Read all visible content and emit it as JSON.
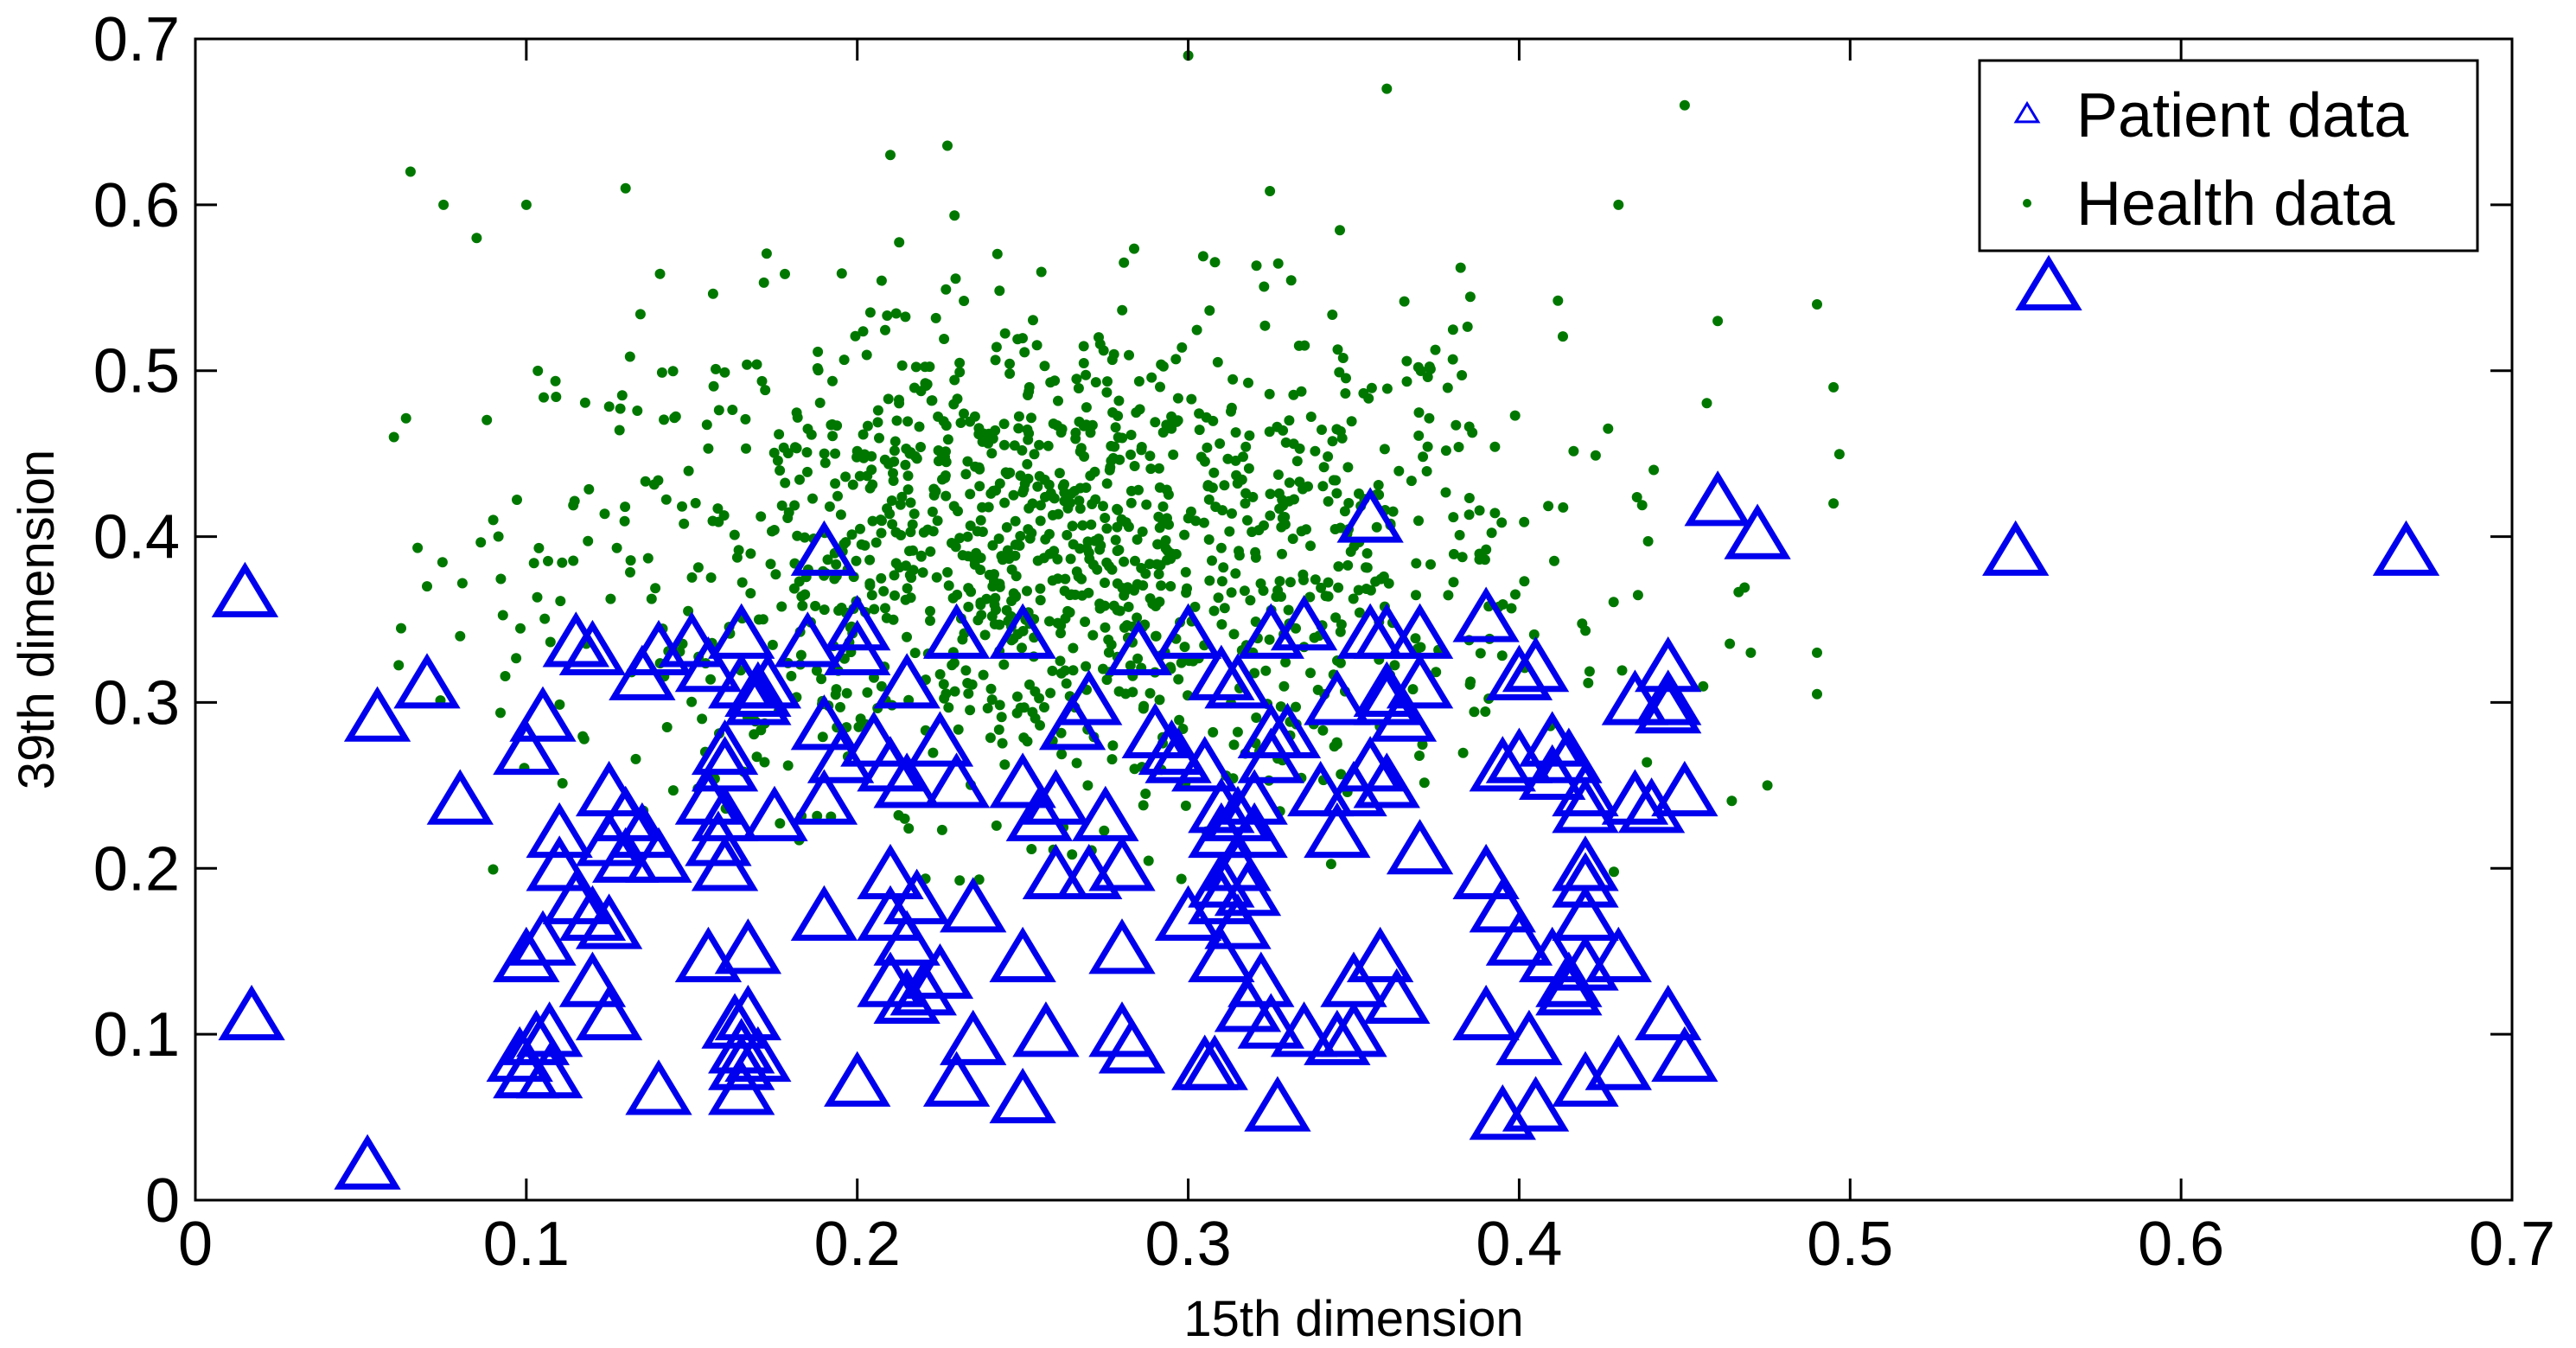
{
  "chart_data": {
    "type": "scatter",
    "xlabel": "15th dimension",
    "ylabel": "39th dimension",
    "xlim": [
      0,
      0.7
    ],
    "ylim": [
      0,
      0.7
    ],
    "x_ticks": [
      "0",
      "0.1",
      "0.2",
      "0.3",
      "0.4",
      "0.5",
      "0.6",
      "0.7"
    ],
    "y_ticks": [
      "0",
      "0.1",
      "0.2",
      "0.3",
      "0.4",
      "0.5",
      "0.6",
      "0.7"
    ],
    "grid": false,
    "legend_position": "top-right",
    "series": [
      {
        "name": "Patient data",
        "marker": "triangle",
        "color": "#0000ee",
        "points": [
          [
            0.015,
            0.365
          ],
          [
            0.055,
            0.29
          ],
          [
            0.07,
            0.31
          ],
          [
            0.08,
            0.24
          ],
          [
            0.017,
            0.11
          ],
          [
            0.052,
            0.02
          ],
          [
            0.1,
            0.27
          ],
          [
            0.105,
            0.29
          ],
          [
            0.11,
            0.22
          ],
          [
            0.11,
            0.2
          ],
          [
            0.115,
            0.18
          ],
          [
            0.12,
            0.17
          ],
          [
            0.125,
            0.165
          ],
          [
            0.12,
            0.13
          ],
          [
            0.125,
            0.11
          ],
          [
            0.1,
            0.145
          ],
          [
            0.105,
            0.155
          ],
          [
            0.098,
            0.085
          ],
          [
            0.103,
            0.095
          ],
          [
            0.107,
            0.1
          ],
          [
            0.1,
            0.075
          ],
          [
            0.107,
            0.075
          ],
          [
            0.115,
            0.335
          ],
          [
            0.12,
            0.33
          ],
          [
            0.125,
            0.245
          ],
          [
            0.13,
            0.23
          ],
          [
            0.125,
            0.215
          ],
          [
            0.13,
            0.205
          ],
          [
            0.135,
            0.22
          ],
          [
            0.14,
            0.205
          ],
          [
            0.135,
            0.315
          ],
          [
            0.14,
            0.33
          ],
          [
            0.15,
            0.335
          ],
          [
            0.155,
            0.32
          ],
          [
            0.14,
            0.065
          ],
          [
            0.16,
            0.27
          ],
          [
            0.16,
            0.26
          ],
          [
            0.155,
            0.24
          ],
          [
            0.16,
            0.23
          ],
          [
            0.158,
            0.215
          ],
          [
            0.16,
            0.2
          ],
          [
            0.155,
            0.145
          ],
          [
            0.165,
            0.34
          ],
          [
            0.165,
            0.31
          ],
          [
            0.17,
            0.305
          ],
          [
            0.173,
            0.31
          ],
          [
            0.175,
            0.23
          ],
          [
            0.17,
            0.3
          ],
          [
            0.163,
            0.105
          ],
          [
            0.167,
            0.11
          ],
          [
            0.165,
            0.09
          ],
          [
            0.17,
            0.085
          ],
          [
            0.165,
            0.08
          ],
          [
            0.165,
            0.065
          ],
          [
            0.167,
            0.15
          ],
          [
            0.19,
            0.39
          ],
          [
            0.185,
            0.335
          ],
          [
            0.19,
            0.285
          ],
          [
            0.195,
            0.265
          ],
          [
            0.19,
            0.24
          ],
          [
            0.2,
            0.33
          ],
          [
            0.2,
            0.345
          ],
          [
            0.205,
            0.275
          ],
          [
            0.19,
            0.17
          ],
          [
            0.2,
            0.07
          ],
          [
            0.215,
            0.31
          ],
          [
            0.21,
            0.26
          ],
          [
            0.215,
            0.25
          ],
          [
            0.21,
            0.195
          ],
          [
            0.21,
            0.17
          ],
          [
            0.215,
            0.155
          ],
          [
            0.218,
            0.18
          ],
          [
            0.21,
            0.13
          ],
          [
            0.215,
            0.12
          ],
          [
            0.22,
            0.125
          ],
          [
            0.225,
            0.135
          ],
          [
            0.23,
            0.34
          ],
          [
            0.225,
            0.275
          ],
          [
            0.23,
            0.25
          ],
          [
            0.235,
            0.175
          ],
          [
            0.23,
            0.07
          ],
          [
            0.235,
            0.095
          ],
          [
            0.25,
            0.34
          ],
          [
            0.25,
            0.25
          ],
          [
            0.255,
            0.23
          ],
          [
            0.25,
            0.145
          ],
          [
            0.257,
            0.1
          ],
          [
            0.25,
            0.06
          ],
          [
            0.26,
            0.24
          ],
          [
            0.26,
            0.195
          ],
          [
            0.265,
            0.285
          ],
          [
            0.27,
            0.3
          ],
          [
            0.275,
            0.23
          ],
          [
            0.27,
            0.195
          ],
          [
            0.28,
            0.2
          ],
          [
            0.28,
            0.15
          ],
          [
            0.28,
            0.1
          ],
          [
            0.283,
            0.09
          ],
          [
            0.285,
            0.33
          ],
          [
            0.29,
            0.28
          ],
          [
            0.295,
            0.27
          ],
          [
            0.297,
            0.265
          ],
          [
            0.3,
            0.34
          ],
          [
            0.3,
            0.17
          ],
          [
            0.305,
            0.26
          ],
          [
            0.305,
            0.08
          ],
          [
            0.31,
            0.315
          ],
          [
            0.31,
            0.235
          ],
          [
            0.31,
            0.22
          ],
          [
            0.31,
            0.19
          ],
          [
            0.31,
            0.18
          ],
          [
            0.31,
            0.145
          ],
          [
            0.308,
            0.08
          ],
          [
            0.315,
            0.31
          ],
          [
            0.315,
            0.23
          ],
          [
            0.315,
            0.2
          ],
          [
            0.318,
            0.185
          ],
          [
            0.315,
            0.165
          ],
          [
            0.318,
            0.115
          ],
          [
            0.32,
            0.24
          ],
          [
            0.32,
            0.22
          ],
          [
            0.322,
            0.13
          ],
          [
            0.325,
            0.34
          ],
          [
            0.325,
            0.28
          ],
          [
            0.325,
            0.265
          ],
          [
            0.325,
            0.105
          ],
          [
            0.327,
            0.055
          ],
          [
            0.33,
            0.28
          ],
          [
            0.335,
            0.345
          ],
          [
            0.335,
            0.1
          ],
          [
            0.34,
            0.245
          ],
          [
            0.345,
            0.22
          ],
          [
            0.345,
            0.3
          ],
          [
            0.345,
            0.095
          ],
          [
            0.35,
            0.245
          ],
          [
            0.35,
            0.1
          ],
          [
            0.35,
            0.13
          ],
          [
            0.355,
            0.41
          ],
          [
            0.355,
            0.26
          ],
          [
            0.355,
            0.34
          ],
          [
            0.36,
            0.34
          ],
          [
            0.36,
            0.305
          ],
          [
            0.36,
            0.3
          ],
          [
            0.36,
            0.25
          ],
          [
            0.358,
            0.145
          ],
          [
            0.363,
            0.12
          ],
          [
            0.365,
            0.29
          ],
          [
            0.37,
            0.31
          ],
          [
            0.37,
            0.34
          ],
          [
            0.37,
            0.21
          ],
          [
            0.39,
            0.35
          ],
          [
            0.39,
            0.195
          ],
          [
            0.395,
            0.175
          ],
          [
            0.4,
            0.155
          ],
          [
            0.39,
            0.11
          ],
          [
            0.395,
            0.26
          ],
          [
            0.4,
            0.265
          ],
          [
            0.4,
            0.315
          ],
          [
            0.405,
            0.32
          ],
          [
            0.395,
            0.05
          ],
          [
            0.405,
            0.055
          ],
          [
            0.403,
            0.095
          ],
          [
            0.41,
            0.275
          ],
          [
            0.415,
            0.265
          ],
          [
            0.41,
            0.255
          ],
          [
            0.42,
            0.245
          ],
          [
            0.42,
            0.235
          ],
          [
            0.42,
            0.2
          ],
          [
            0.42,
            0.19
          ],
          [
            0.42,
            0.17
          ],
          [
            0.41,
            0.145
          ],
          [
            0.415,
            0.13
          ],
          [
            0.42,
            0.14
          ],
          [
            0.415,
            0.125
          ],
          [
            0.42,
            0.07
          ],
          [
            0.43,
            0.145
          ],
          [
            0.43,
            0.08
          ],
          [
            0.435,
            0.3
          ],
          [
            0.435,
            0.24
          ],
          [
            0.44,
            0.235
          ],
          [
            0.445,
            0.32
          ],
          [
            0.445,
            0.3
          ],
          [
            0.445,
            0.295
          ],
          [
            0.45,
            0.245
          ],
          [
            0.445,
            0.11
          ],
          [
            0.45,
            0.085
          ],
          [
            0.46,
            0.42
          ],
          [
            0.472,
            0.4
          ],
          [
            0.55,
            0.39
          ],
          [
            0.56,
            0.55
          ],
          [
            0.668,
            0.39
          ]
        ]
      },
      {
        "name": "Health data",
        "marker": "dot",
        "color": "#007800",
        "center": [
          0.26,
          0.39
        ],
        "n_points": 1300,
        "x_spread": 0.075,
        "y_spread": 0.075,
        "x_range": [
          0.05,
          0.5
        ],
        "y_range": [
          0.18,
          0.69
        ],
        "outliers": [
          [
            0.3,
            0.69
          ],
          [
            0.36,
            0.67
          ],
          [
            0.45,
            0.66
          ],
          [
            0.21,
            0.63
          ],
          [
            0.065,
            0.62
          ],
          [
            0.075,
            0.6
          ],
          [
            0.1,
            0.6
          ],
          [
            0.13,
            0.61
          ],
          [
            0.43,
            0.6
          ],
          [
            0.46,
            0.53
          ],
          [
            0.49,
            0.54
          ],
          [
            0.495,
            0.49
          ],
          [
            0.495,
            0.42
          ],
          [
            0.49,
            0.33
          ],
          [
            0.49,
            0.305
          ],
          [
            0.475,
            0.25
          ],
          [
            0.47,
            0.33
          ],
          [
            0.06,
            0.46
          ],
          [
            0.07,
            0.37
          ],
          [
            0.09,
            0.41
          ],
          [
            0.08,
            0.34
          ],
          [
            0.085,
            0.58
          ]
        ]
      }
    ]
  }
}
